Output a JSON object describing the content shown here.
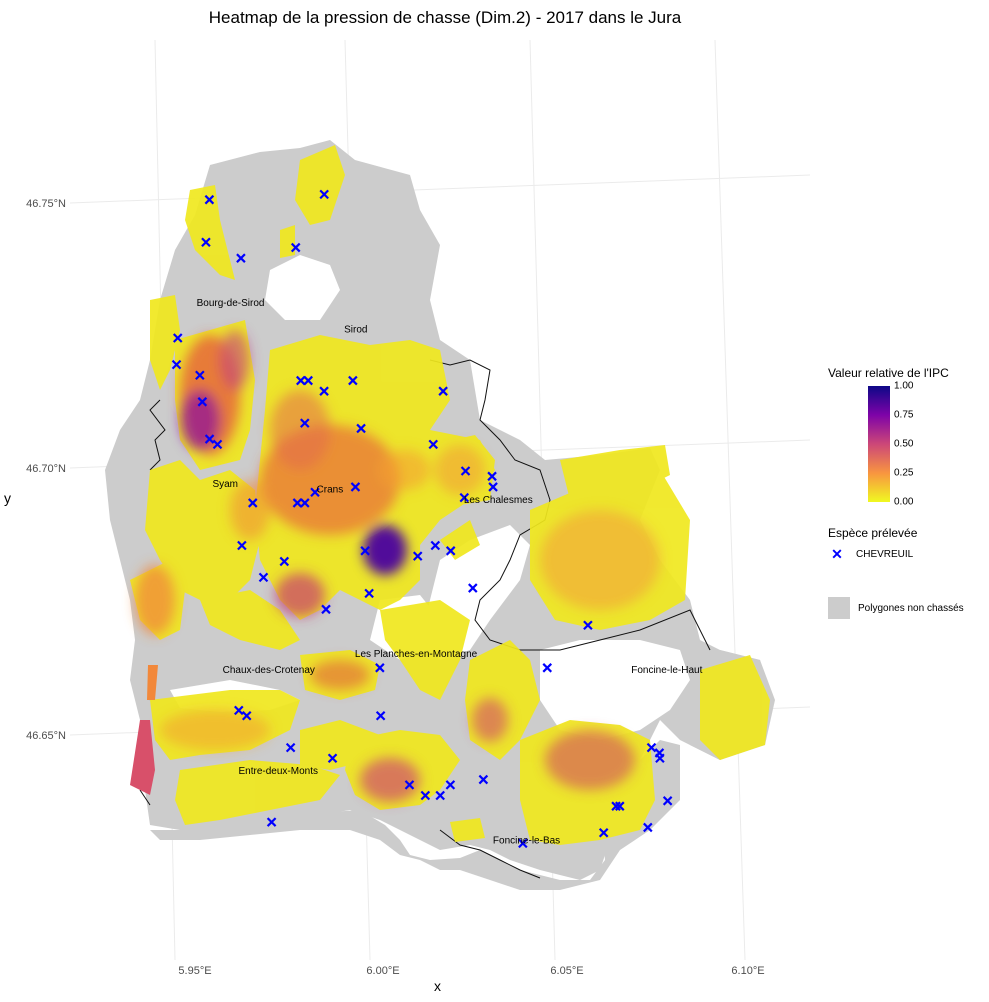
{
  "title": "Heatmap de la pression de chasse (Dim.2) - 2017 dans le Jura",
  "axes": {
    "xlabel": "x",
    "ylabel": "y",
    "xticks": [
      "5.95°E",
      "6.00°E",
      "6.05°E",
      "6.10°E"
    ],
    "yticks": [
      "46.75°N",
      "46.70°N",
      "46.65°N"
    ]
  },
  "towns": [
    {
      "name": "Bourg-de-Sirod",
      "lon": 5.957,
      "lat": 46.731
    },
    {
      "name": "Sirod",
      "lon": 5.99,
      "lat": 46.726
    },
    {
      "name": "Syam",
      "lon": 5.951,
      "lat": 46.697
    },
    {
      "name": "Crans",
      "lon": 5.979,
      "lat": 46.696
    },
    {
      "name": "Les Chalesmes",
      "lon": 6.024,
      "lat": 46.694
    },
    {
      "name": "Les Planches-en-Montagne",
      "lon": 5.998,
      "lat": 46.665
    },
    {
      "name": "Chaux-des-Crotenay",
      "lon": 5.958,
      "lat": 46.662
    },
    {
      "name": "Foncine-le-Haut",
      "lon": 6.065,
      "lat": 46.662
    },
    {
      "name": "Entre-deux-Monts",
      "lon": 5.958,
      "lat": 46.643
    },
    {
      "name": "Foncine-le-Bas",
      "lon": 6.023,
      "lat": 46.63
    }
  ],
  "legend": {
    "color_title": "Valeur relative de l'IPC",
    "color_ticks": [
      "1.00",
      "0.75",
      "0.50",
      "0.25",
      "0.00"
    ],
    "colormap": "plasma",
    "species_title": "Espèce prélevée",
    "species": "CHEVREUIL",
    "species_color": "#0000ff",
    "nonhunted_label": "Polygones non chassés",
    "nonhunted_color": "#cccccc"
  },
  "chart_data": {
    "type": "heatmap",
    "title": "Heatmap de la pression de chasse (Dim.2) - 2017 dans le Jura",
    "xlabel": "x",
    "ylabel": "y",
    "xlim": [
      5.925,
      6.12
    ],
    "ylim": [
      46.608,
      46.79
    ],
    "value_range": [
      0,
      1
    ],
    "observations_chevreuil": [
      [
        5.954,
        46.751
      ],
      [
        5.952,
        46.743
      ],
      [
        5.961,
        46.74
      ],
      [
        5.985,
        46.752
      ],
      [
        5.976,
        46.742
      ],
      [
        5.942,
        46.725
      ],
      [
        5.941,
        46.72
      ],
      [
        5.947,
        46.718
      ],
      [
        5.947,
        46.713
      ],
      [
        5.948,
        46.706
      ],
      [
        5.95,
        46.705
      ],
      [
        5.974,
        46.717
      ],
      [
        5.976,
        46.717
      ],
      [
        5.98,
        46.715
      ],
      [
        5.988,
        46.717
      ],
      [
        6.012,
        46.715
      ],
      [
        5.974,
        46.709
      ],
      [
        5.989,
        46.708
      ],
      [
        6.008,
        46.705
      ],
      [
        6.016,
        46.7
      ],
      [
        6.023,
        46.699
      ],
      [
        6.023,
        46.697
      ],
      [
        6.015,
        46.695
      ],
      [
        5.958,
        46.694
      ],
      [
        5.97,
        46.694
      ],
      [
        5.972,
        46.694
      ],
      [
        5.975,
        46.696
      ],
      [
        5.986,
        46.697
      ],
      [
        5.954,
        46.686
      ],
      [
        5.965,
        46.683
      ],
      [
        5.987,
        46.685
      ],
      [
        6.001,
        46.684
      ],
      [
        6.006,
        46.686
      ],
      [
        6.01,
        46.685
      ],
      [
        5.959,
        46.68
      ],
      [
        6.015,
        46.678
      ],
      [
        5.987,
        46.677
      ],
      [
        5.975,
        46.674
      ],
      [
        6.045,
        46.671
      ],
      [
        5.988,
        46.663
      ],
      [
        6.033,
        46.663
      ],
      [
        5.949,
        46.655
      ],
      [
        5.951,
        46.654
      ],
      [
        5.962,
        46.648
      ],
      [
        5.973,
        46.646
      ],
      [
        5.987,
        46.654
      ],
      [
        5.993,
        46.641
      ],
      [
        5.997,
        46.639
      ],
      [
        6.001,
        46.639
      ],
      [
        6.004,
        46.641
      ],
      [
        6.013,
        46.642
      ],
      [
        5.955,
        46.634
      ],
      [
        6.059,
        46.648
      ],
      [
        6.061,
        46.646
      ],
      [
        6.061,
        46.647
      ],
      [
        6.048,
        46.637
      ],
      [
        6.049,
        46.637
      ],
      [
        6.062,
        46.638
      ],
      [
        6.056,
        46.633
      ],
      [
        6.044,
        46.632
      ],
      [
        6.022,
        46.63
      ]
    ],
    "intensity_hotspots": [
      {
        "lon": 6.001,
        "lat": 46.682,
        "value": 1.0
      },
      {
        "lon": 5.948,
        "lat": 46.708,
        "value": 0.65
      },
      {
        "lon": 5.987,
        "lat": 46.693,
        "value": 0.45
      },
      {
        "lon": 5.978,
        "lat": 46.675,
        "value": 0.5
      },
      {
        "lon": 6.002,
        "lat": 46.64,
        "value": 0.45
      },
      {
        "lon": 6.059,
        "lat": 46.645,
        "value": 0.4
      },
      {
        "lon": 5.934,
        "lat": 46.643,
        "value": 0.45
      },
      {
        "lon": 6.033,
        "lat": 46.652,
        "value": 0.35
      },
      {
        "lon": 6.062,
        "lat": 46.673,
        "value": 0.2
      }
    ]
  }
}
